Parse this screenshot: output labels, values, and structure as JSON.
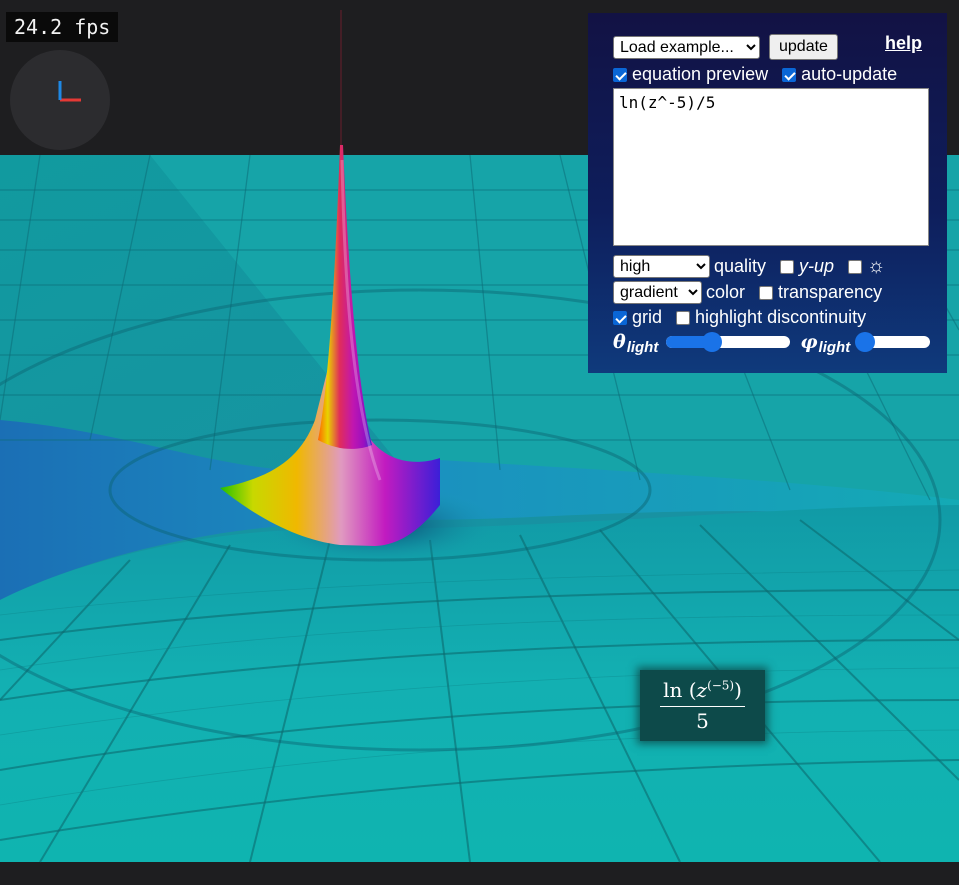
{
  "fps": "24.2 fps",
  "panel": {
    "example_select": "Load example...",
    "update_label": "update",
    "help_label": "help",
    "equation_preview_label": "equation preview",
    "equation_preview_checked": true,
    "auto_update_label": "auto-update",
    "auto_update_checked": true,
    "equation": "ln(z^-5)/5",
    "quality_select": "high",
    "quality_label": "quality",
    "y_up_label": "y-up",
    "y_up_checked": false,
    "sun_checked": false,
    "sun_icon": "☼",
    "color_select": "gradient",
    "color_label": "color",
    "transparency_label": "transparency",
    "transparency_checked": false,
    "grid_label": "grid",
    "grid_checked": true,
    "highlight_label": "highlight discontinuity",
    "highlight_checked": false,
    "theta_symbol": "θ",
    "phi_symbol": "φ",
    "light_sub": "light",
    "theta_value": 0.37,
    "phi_value": 0.12
  },
  "preview": {
    "func": "ln",
    "var": "z",
    "exponent": "(−5)",
    "denominator": "5"
  },
  "colors": {
    "surface": "#10b3b3",
    "panel_top": "#121244",
    "panel_bottom": "#0f3a7c",
    "accent": "#1a73e8",
    "axis_x": "#e53935",
    "axis_y": "#1e88e5"
  }
}
